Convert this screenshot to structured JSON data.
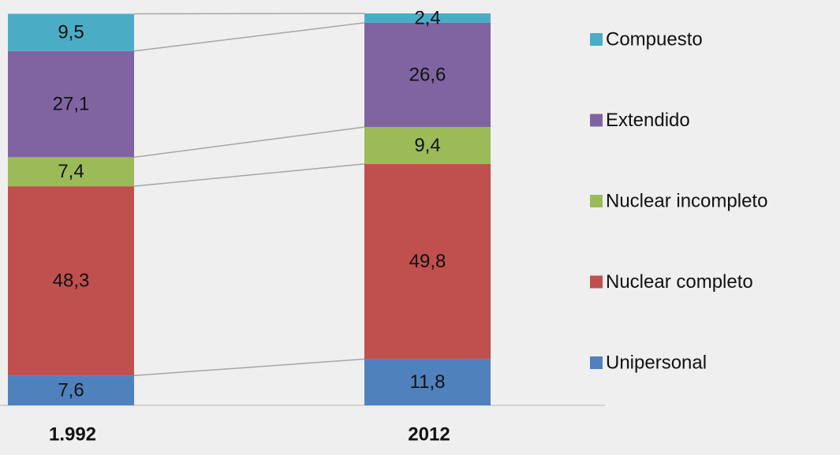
{
  "chart_data": {
    "type": "bar",
    "stacked": true,
    "categories": [
      "1.992",
      "2012"
    ],
    "series": [
      {
        "name": "Unipersonal",
        "color": "#4f81bd",
        "values": [
          7.6,
          11.8
        ],
        "value_labels": [
          "7,6",
          "11,8"
        ]
      },
      {
        "name": "Nuclear completo",
        "color": "#c0504d",
        "values": [
          48.3,
          49.8
        ],
        "value_labels": [
          "48,3",
          "49,8"
        ]
      },
      {
        "name": "Nuclear incompleto",
        "color": "#9bbb59",
        "values": [
          7.4,
          9.4
        ],
        "value_labels": [
          "7,4",
          "9,4"
        ]
      },
      {
        "name": "Extendido",
        "color": "#8064a2",
        "values": [
          27.1,
          26.6
        ],
        "value_labels": [
          "27,1",
          "26,6"
        ]
      },
      {
        "name": "Compuesto",
        "color": "#4bacc6",
        "values": [
          9.5,
          2.4
        ],
        "value_labels": [
          "9,5",
          "2,4"
        ]
      }
    ],
    "series_lines": true,
    "legend": "right"
  }
}
